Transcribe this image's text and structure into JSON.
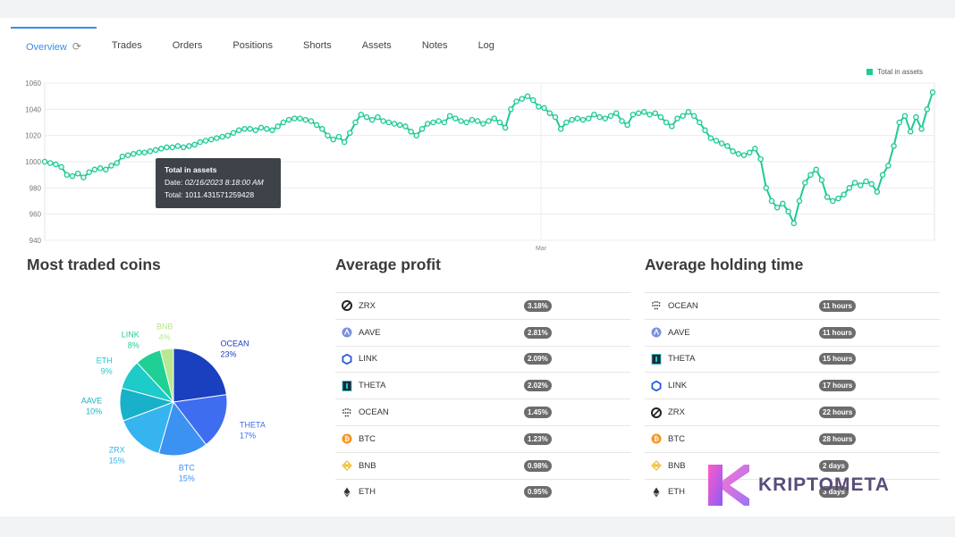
{
  "tabs": [
    {
      "label": "Overview",
      "active": true
    },
    {
      "label": "Trades"
    },
    {
      "label": "Orders"
    },
    {
      "label": "Positions"
    },
    {
      "label": "Shorts"
    },
    {
      "label": "Assets"
    },
    {
      "label": "Notes"
    },
    {
      "label": "Log"
    }
  ],
  "icons": {
    "refresh": "refresh-icon"
  },
  "chart_data": [
    {
      "type": "line",
      "legend": "Total in assets",
      "legend_position": "top-right",
      "color": "#20c997",
      "ylim": [
        940,
        1060
      ],
      "yticks": [
        "1060",
        "1040",
        "1020",
        "1000",
        "980",
        "960",
        "940"
      ],
      "xtick_label": "Mar",
      "grid": true,
      "series": [
        {
          "name": "Total in assets",
          "values": [
            1000,
            999,
            998,
            996,
            990,
            989,
            991,
            988,
            992,
            994,
            995,
            994,
            997,
            999,
            1004,
            1005,
            1006,
            1007,
            1007,
            1008,
            1009,
            1010,
            1011,
            1011,
            1012,
            1011,
            1012,
            1013,
            1015,
            1016,
            1017,
            1018,
            1019,
            1020,
            1022,
            1024,
            1025,
            1025,
            1024,
            1026,
            1025,
            1024,
            1027,
            1030,
            1032,
            1033,
            1033,
            1032,
            1031,
            1028,
            1025,
            1020,
            1017,
            1019,
            1015,
            1022,
            1030,
            1036,
            1034,
            1032,
            1034,
            1031,
            1030,
            1029,
            1028,
            1027,
            1023,
            1020,
            1025,
            1029,
            1030,
            1031,
            1030,
            1035,
            1033,
            1031,
            1030,
            1032,
            1031,
            1029,
            1031,
            1033,
            1030,
            1026,
            1040,
            1046,
            1048,
            1050,
            1047,
            1042,
            1041,
            1037,
            1034,
            1025,
            1030,
            1032,
            1033,
            1032,
            1033,
            1036,
            1034,
            1033,
            1035,
            1037,
            1031,
            1028,
            1036,
            1037,
            1038,
            1036,
            1037,
            1034,
            1030,
            1027,
            1033,
            1035,
            1038,
            1035,
            1030,
            1024,
            1018,
            1016,
            1014,
            1012,
            1008,
            1006,
            1005,
            1007,
            1010,
            1002,
            980,
            970,
            965,
            968,
            962,
            953,
            970,
            984,
            990,
            994,
            986,
            973,
            970,
            972,
            975,
            980,
            984,
            982,
            985,
            983,
            977,
            990,
            997,
            1012,
            1030,
            1035,
            1023,
            1034,
            1025,
            1040,
            1053
          ]
        }
      ]
    },
    {
      "type": "pie",
      "title": "Most traded coins",
      "slices": [
        {
          "label": "OCEAN",
          "percent": "23%",
          "value": 23,
          "color": "#1a3fbf"
        },
        {
          "label": "THETA",
          "percent": "17%",
          "value": 17,
          "color": "#3f6df0"
        },
        {
          "label": "BTC",
          "percent": "15%",
          "value": 15,
          "color": "#3b92f0"
        },
        {
          "label": "ZRX",
          "percent": "15%",
          "value": 15,
          "color": "#36b4ef"
        },
        {
          "label": "AAVE",
          "percent": "10%",
          "value": 10,
          "color": "#19b1c9"
        },
        {
          "label": "ETH",
          "percent": "9%",
          "value": 9,
          "color": "#1dcbc8"
        },
        {
          "label": "LINK",
          "percent": "8%",
          "value": 8,
          "color": "#1fcf94"
        },
        {
          "label": "BNB",
          "percent": "4%",
          "value": 4,
          "color": "#b8e890"
        }
      ]
    }
  ],
  "tooltip": {
    "title": "Total in assets",
    "date_label": "Date:",
    "date": "02/16/2023 8:18:00 AM",
    "total_label": "Total:",
    "total": "1011.431571259428"
  },
  "sections": {
    "most_traded": "Most traded coins",
    "avg_profit": "Average profit",
    "avg_holding": "Average holding time"
  },
  "avg_profit": [
    {
      "coin": "ZRX",
      "icon": "zrx-icon",
      "value": "3.18%"
    },
    {
      "coin": "AAVE",
      "icon": "aave-icon",
      "value": "2.81%"
    },
    {
      "coin": "LINK",
      "icon": "link-icon",
      "value": "2.09%"
    },
    {
      "coin": "THETA",
      "icon": "theta-icon",
      "value": "2.02%"
    },
    {
      "coin": "OCEAN",
      "icon": "ocean-icon",
      "value": "1.45%"
    },
    {
      "coin": "BTC",
      "icon": "btc-icon",
      "value": "1.23%"
    },
    {
      "coin": "BNB",
      "icon": "bnb-icon",
      "value": "0.98%"
    },
    {
      "coin": "ETH",
      "icon": "eth-icon",
      "value": "0.95%"
    }
  ],
  "avg_holding": [
    {
      "coin": "OCEAN",
      "icon": "ocean-icon",
      "value": "11 hours"
    },
    {
      "coin": "AAVE",
      "icon": "aave-icon",
      "value": "11 hours"
    },
    {
      "coin": "THETA",
      "icon": "theta-icon",
      "value": "15 hours"
    },
    {
      "coin": "LINK",
      "icon": "link-icon",
      "value": "17 hours"
    },
    {
      "coin": "ZRX",
      "icon": "zrx-icon",
      "value": "22 hours"
    },
    {
      "coin": "BTC",
      "icon": "btc-icon",
      "value": "28 hours"
    },
    {
      "coin": "BNB",
      "icon": "bnb-icon",
      "value": "2 days"
    },
    {
      "coin": "ETH",
      "icon": "eth-icon",
      "value": "3 days"
    }
  ],
  "watermark": {
    "text": "KRIPTOMETA",
    "icon": "kriptometa-logo-icon"
  }
}
